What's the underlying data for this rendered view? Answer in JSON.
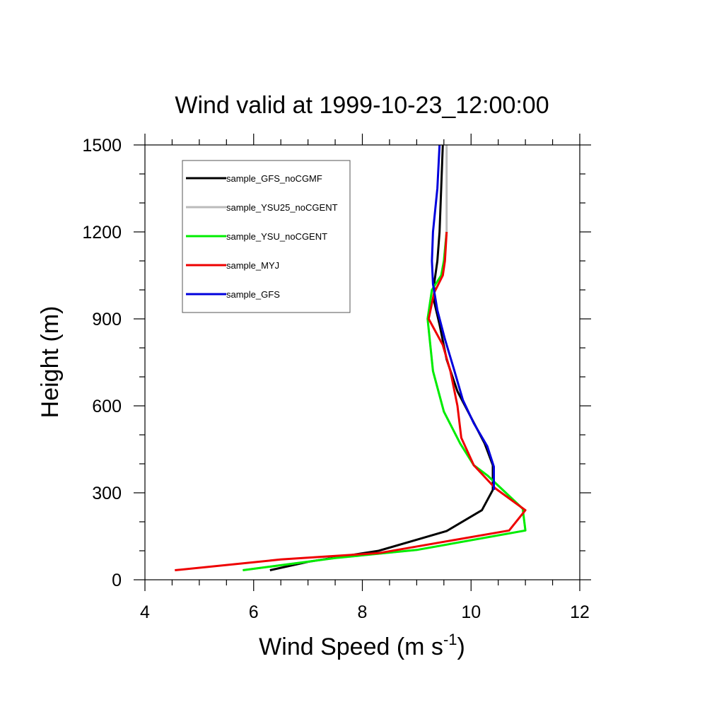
{
  "chart_data": {
    "type": "line",
    "title": "Wind valid at 1999-10-23_12:00:00",
    "xlabel_main": "Wind Speed (m s",
    "xlabel_sup": "-1",
    "xlabel_close": ")",
    "ylabel": "Height (m)",
    "xlim": [
      4,
      12
    ],
    "ylim": [
      0,
      1500
    ],
    "x_ticks": [
      "4",
      "6",
      "8",
      "10",
      "12"
    ],
    "y_ticks": [
      "0",
      "300",
      "600",
      "900",
      "1200",
      "1500"
    ],
    "legend_position": "top-left",
    "series": [
      {
        "name": "sample_GFS_noCGMF",
        "color": "#000000",
        "points": [
          [
            6.3,
            33
          ],
          [
            7.0,
            62
          ],
          [
            8.3,
            100
          ],
          [
            9.55,
            168
          ],
          [
            10.2,
            240
          ],
          [
            10.4,
            310
          ],
          [
            10.4,
            395
          ],
          [
            10.25,
            470
          ],
          [
            10.0,
            560
          ],
          [
            9.75,
            650
          ],
          [
            9.55,
            760
          ],
          [
            9.42,
            880
          ],
          [
            9.32,
            960
          ],
          [
            9.32,
            1020
          ],
          [
            9.38,
            1100
          ],
          [
            9.42,
            1200
          ],
          [
            9.45,
            1350
          ],
          [
            9.48,
            1500
          ]
        ]
      },
      {
        "name": "sample_YSU25_noCGENT",
        "color": "#bbbbbb",
        "points": [
          [
            5.8,
            33
          ],
          [
            7.5,
            75
          ],
          [
            9.0,
            103
          ],
          [
            11.0,
            170
          ],
          [
            10.95,
            245
          ],
          [
            10.3,
            360
          ],
          [
            10.05,
            395
          ],
          [
            9.8,
            470
          ],
          [
            9.5,
            580
          ],
          [
            9.3,
            720
          ],
          [
            9.2,
            900
          ],
          [
            9.28,
            1000
          ],
          [
            9.45,
            1050
          ],
          [
            9.5,
            1100
          ],
          [
            9.55,
            1200
          ],
          [
            9.55,
            1350
          ],
          [
            9.55,
            1500
          ]
        ]
      },
      {
        "name": "sample_YSU_noCGENT",
        "color": "#00ee00",
        "points": [
          [
            5.8,
            33
          ],
          [
            7.5,
            75
          ],
          [
            9.0,
            103
          ],
          [
            11.0,
            170
          ],
          [
            10.95,
            245
          ],
          [
            10.3,
            360
          ],
          [
            10.05,
            395
          ],
          [
            9.8,
            470
          ],
          [
            9.5,
            580
          ],
          [
            9.3,
            720
          ],
          [
            9.2,
            900
          ],
          [
            9.28,
            1000
          ],
          [
            9.45,
            1050
          ],
          [
            9.5,
            1100
          ],
          [
            9.55,
            1200
          ]
        ]
      },
      {
        "name": "sample_MYJ",
        "color": "#ee0000",
        "points": [
          [
            4.55,
            33
          ],
          [
            6.5,
            70
          ],
          [
            8.3,
            92
          ],
          [
            10.7,
            170
          ],
          [
            11.0,
            240
          ],
          [
            10.45,
            315
          ],
          [
            10.05,
            395
          ],
          [
            9.82,
            490
          ],
          [
            9.75,
            600
          ],
          [
            9.62,
            720
          ],
          [
            9.48,
            810
          ],
          [
            9.22,
            900
          ],
          [
            9.32,
            990
          ],
          [
            9.48,
            1050
          ],
          [
            9.52,
            1100
          ],
          [
            9.55,
            1200
          ]
        ]
      },
      {
        "name": "sample_GFS",
        "color": "#0000dd",
        "points": [
          [
            10.42,
            310
          ],
          [
            10.42,
            390
          ],
          [
            10.3,
            460
          ],
          [
            10.05,
            540
          ],
          [
            9.85,
            620
          ],
          [
            9.68,
            730
          ],
          [
            9.52,
            830
          ],
          [
            9.38,
            930
          ],
          [
            9.3,
            1020
          ],
          [
            9.28,
            1100
          ],
          [
            9.3,
            1200
          ],
          [
            9.38,
            1350
          ],
          [
            9.42,
            1500
          ]
        ]
      }
    ]
  }
}
